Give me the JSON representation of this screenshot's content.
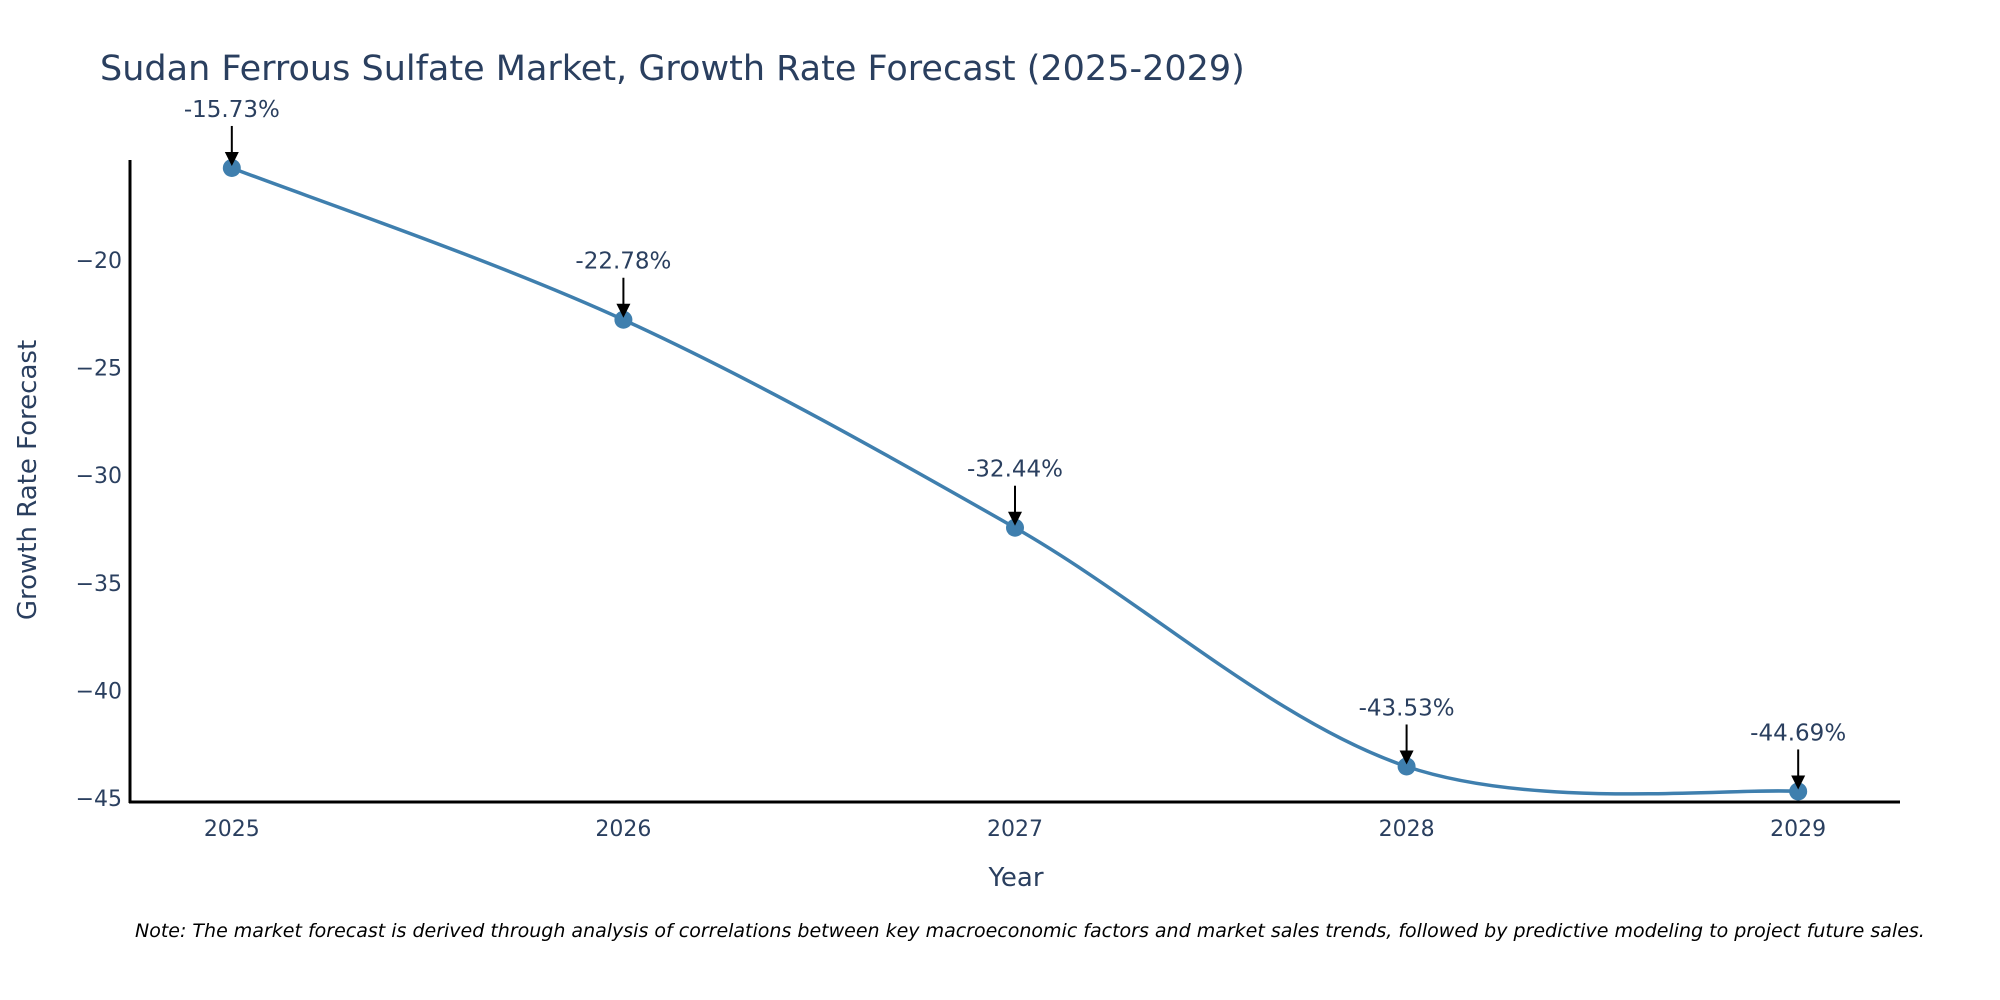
{
  "chart_data": {
    "type": "line",
    "title": "Sudan Ferrous Sulfate Market, Growth Rate Forecast (2025-2029)",
    "xlabel": "Year",
    "ylabel": "Growth Rate Forecast",
    "x": [
      "2025",
      "2026",
      "2027",
      "2028",
      "2029"
    ],
    "values": [
      -15.73,
      -22.78,
      -32.44,
      -43.53,
      -44.69
    ],
    "data_labels": [
      "-15.73%",
      "-22.78%",
      "-32.44%",
      "-43.53%",
      "-44.69%"
    ],
    "yticks": [
      -20,
      -25,
      -30,
      -35,
      -40,
      -45
    ],
    "ytick_labels": [
      "−20",
      "−25",
      "−30",
      "−35",
      "−40",
      "−45"
    ],
    "ylim": [
      -45.18,
      -15.36
    ],
    "xlim": [
      2024.74,
      2029.26
    ],
    "line_shape": "spline",
    "line_color": "#3f7fae",
    "marker_color": "#3f7fae",
    "grid": false,
    "note": "Note: The market forecast is derived through analysis of correlations between key macroeconomic factors and market sales trends, followed by predictive modeling to project future sales."
  }
}
